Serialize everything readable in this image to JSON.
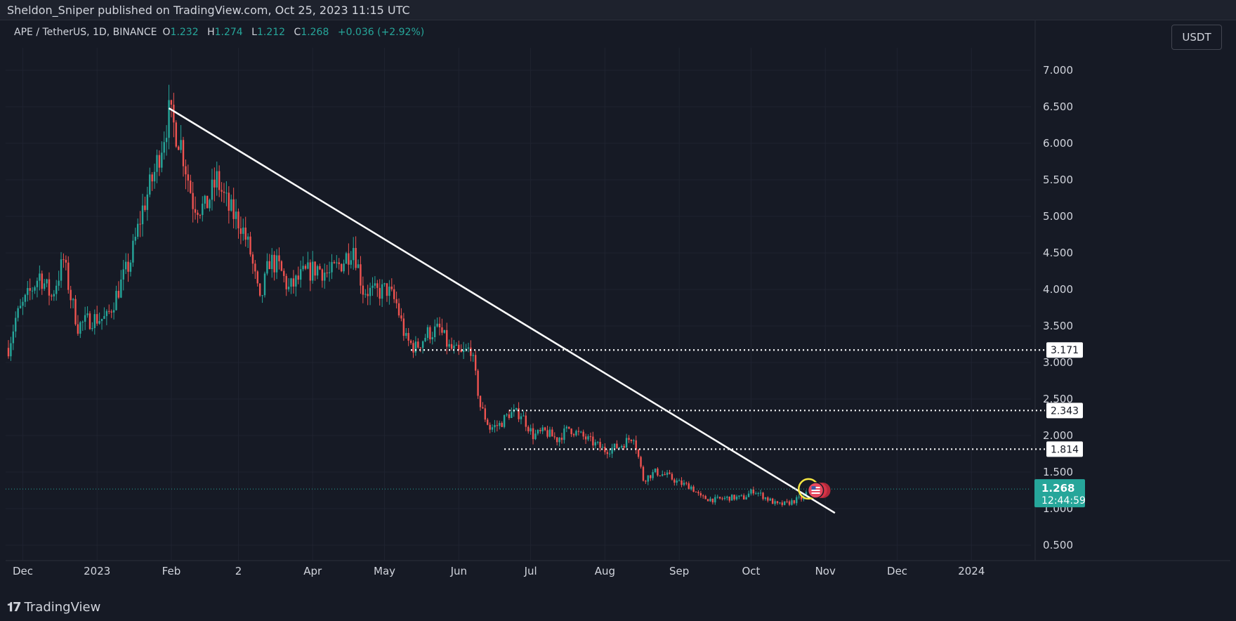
{
  "header": {
    "publisher": "Sheldon_Sniper published on TradingView.com, Oct 25, 2023 11:15 UTC"
  },
  "legend": {
    "symbol": "APE / TetherUS, 1D, BINANCE",
    "o_label": "O",
    "o_value": "1.232",
    "h_label": "H",
    "h_value": "1.274",
    "l_label": "L",
    "l_value": "1.212",
    "c_label": "C",
    "c_value": "1.268",
    "change": "+0.036 (+2.92%)"
  },
  "currency_button": "USDT",
  "footer": {
    "brand": "TradingView"
  },
  "price_tag": {
    "price": "1.268",
    "countdown": "12:44:59"
  },
  "colors": {
    "background": "#161a25",
    "up": "#26a69a",
    "down": "#ef5350",
    "line": "#ffffff",
    "highlight": "#f5e642",
    "grid": "#1f2330",
    "text": "#d1d4dc"
  },
  "chart_data": {
    "type": "candlestick",
    "x_ticks": [
      "Dec",
      "2023",
      "Feb",
      "2",
      "Apr",
      "May",
      "Jun",
      "Jul",
      "Aug",
      "Sep",
      "Oct",
      "Nov",
      "Dec",
      "2024"
    ],
    "y_ticks": [
      "7.000",
      "6.500",
      "6.000",
      "5.500",
      "5.000",
      "4.500",
      "4.000",
      "3.500",
      "3.000",
      "2.500",
      "2.000",
      "1.500",
      "1.000",
      "0.500"
    ],
    "ylim": [
      0.3,
      7.3
    ],
    "price_path": [
      [
        "2022-11-25",
        3.2
      ],
      [
        "2022-11-28",
        3.6
      ],
      [
        "2022-12-03",
        3.9
      ],
      [
        "2022-12-08",
        4.2
      ],
      [
        "2022-12-13",
        3.9
      ],
      [
        "2022-12-18",
        4.4
      ],
      [
        "2022-12-21",
        3.9
      ],
      [
        "2022-12-24",
        3.5
      ],
      [
        "2022-12-30",
        3.6
      ],
      [
        "2023-01-05",
        3.6
      ],
      [
        "2023-01-10",
        4.0
      ],
      [
        "2023-01-15",
        4.4
      ],
      [
        "2023-01-20",
        5.1
      ],
      [
        "2023-01-25",
        5.6
      ],
      [
        "2023-01-31",
        6.4
      ],
      [
        "2023-02-05",
        6.0
      ],
      [
        "2023-02-10",
        5.2
      ],
      [
        "2023-02-15",
        5.1
      ],
      [
        "2023-02-20",
        5.5
      ],
      [
        "2023-02-25",
        5.1
      ],
      [
        "2023-03-02",
        4.9
      ],
      [
        "2023-03-06",
        4.5
      ],
      [
        "2023-03-10",
        3.8
      ],
      [
        "2023-03-14",
        4.4
      ],
      [
        "2023-03-18",
        4.3
      ],
      [
        "2023-03-22",
        4.0
      ],
      [
        "2023-03-28",
        4.2
      ],
      [
        "2023-04-03",
        4.3
      ],
      [
        "2023-04-08",
        4.2
      ],
      [
        "2023-04-14",
        4.4
      ],
      [
        "2023-04-18",
        4.6
      ],
      [
        "2023-04-22",
        4.0
      ],
      [
        "2023-04-27",
        3.95
      ],
      [
        "2023-05-02",
        4.0
      ],
      [
        "2023-05-06",
        3.8
      ],
      [
        "2023-05-10",
        3.3
      ],
      [
        "2023-05-14",
        3.2
      ],
      [
        "2023-05-19",
        3.4
      ],
      [
        "2023-05-24",
        3.45
      ],
      [
        "2023-05-28",
        3.2
      ],
      [
        "2023-06-02",
        3.1
      ],
      [
        "2023-06-06",
        3.2
      ],
      [
        "2023-06-10",
        2.4
      ],
      [
        "2023-06-14",
        2.1
      ],
      [
        "2023-06-18",
        2.15
      ],
      [
        "2023-06-22",
        2.3
      ],
      [
        "2023-06-27",
        2.3
      ],
      [
        "2023-07-02",
        2.0
      ],
      [
        "2023-07-07",
        2.05
      ],
      [
        "2023-07-12",
        1.95
      ],
      [
        "2023-07-17",
        2.1
      ],
      [
        "2023-07-22",
        2.0
      ],
      [
        "2023-07-27",
        1.9
      ],
      [
        "2023-08-01",
        1.8
      ],
      [
        "2023-08-07",
        1.85
      ],
      [
        "2023-08-13",
        2.0
      ],
      [
        "2023-08-17",
        1.4
      ],
      [
        "2023-08-22",
        1.5
      ],
      [
        "2023-08-27",
        1.45
      ],
      [
        "2023-09-01",
        1.35
      ],
      [
        "2023-09-06",
        1.3
      ],
      [
        "2023-09-10",
        1.15
      ],
      [
        "2023-09-16",
        1.12
      ],
      [
        "2023-09-22",
        1.15
      ],
      [
        "2023-09-28",
        1.15
      ],
      [
        "2023-10-02",
        1.25
      ],
      [
        "2023-10-07",
        1.15
      ],
      [
        "2023-10-12",
        1.05
      ],
      [
        "2023-10-16",
        1.07
      ],
      [
        "2023-10-20",
        1.12
      ],
      [
        "2023-10-23",
        1.15
      ],
      [
        "2023-10-25",
        1.268
      ]
    ],
    "trendline": {
      "from": [
        "2023-01-31",
        6.48
      ],
      "to": [
        "2023-11-05",
        0.94
      ]
    },
    "horizontal_levels": [
      {
        "label": "3.171",
        "value": 3.171,
        "from": "2023-05-12"
      },
      {
        "label": "2.343",
        "value": 2.343,
        "from": "2023-06-22"
      },
      {
        "label": "1.814",
        "value": 1.814,
        "from": "2023-06-20"
      }
    ],
    "current_price_line": 1.268,
    "highlight": {
      "date": "2023-10-25",
      "value": 1.27
    }
  }
}
